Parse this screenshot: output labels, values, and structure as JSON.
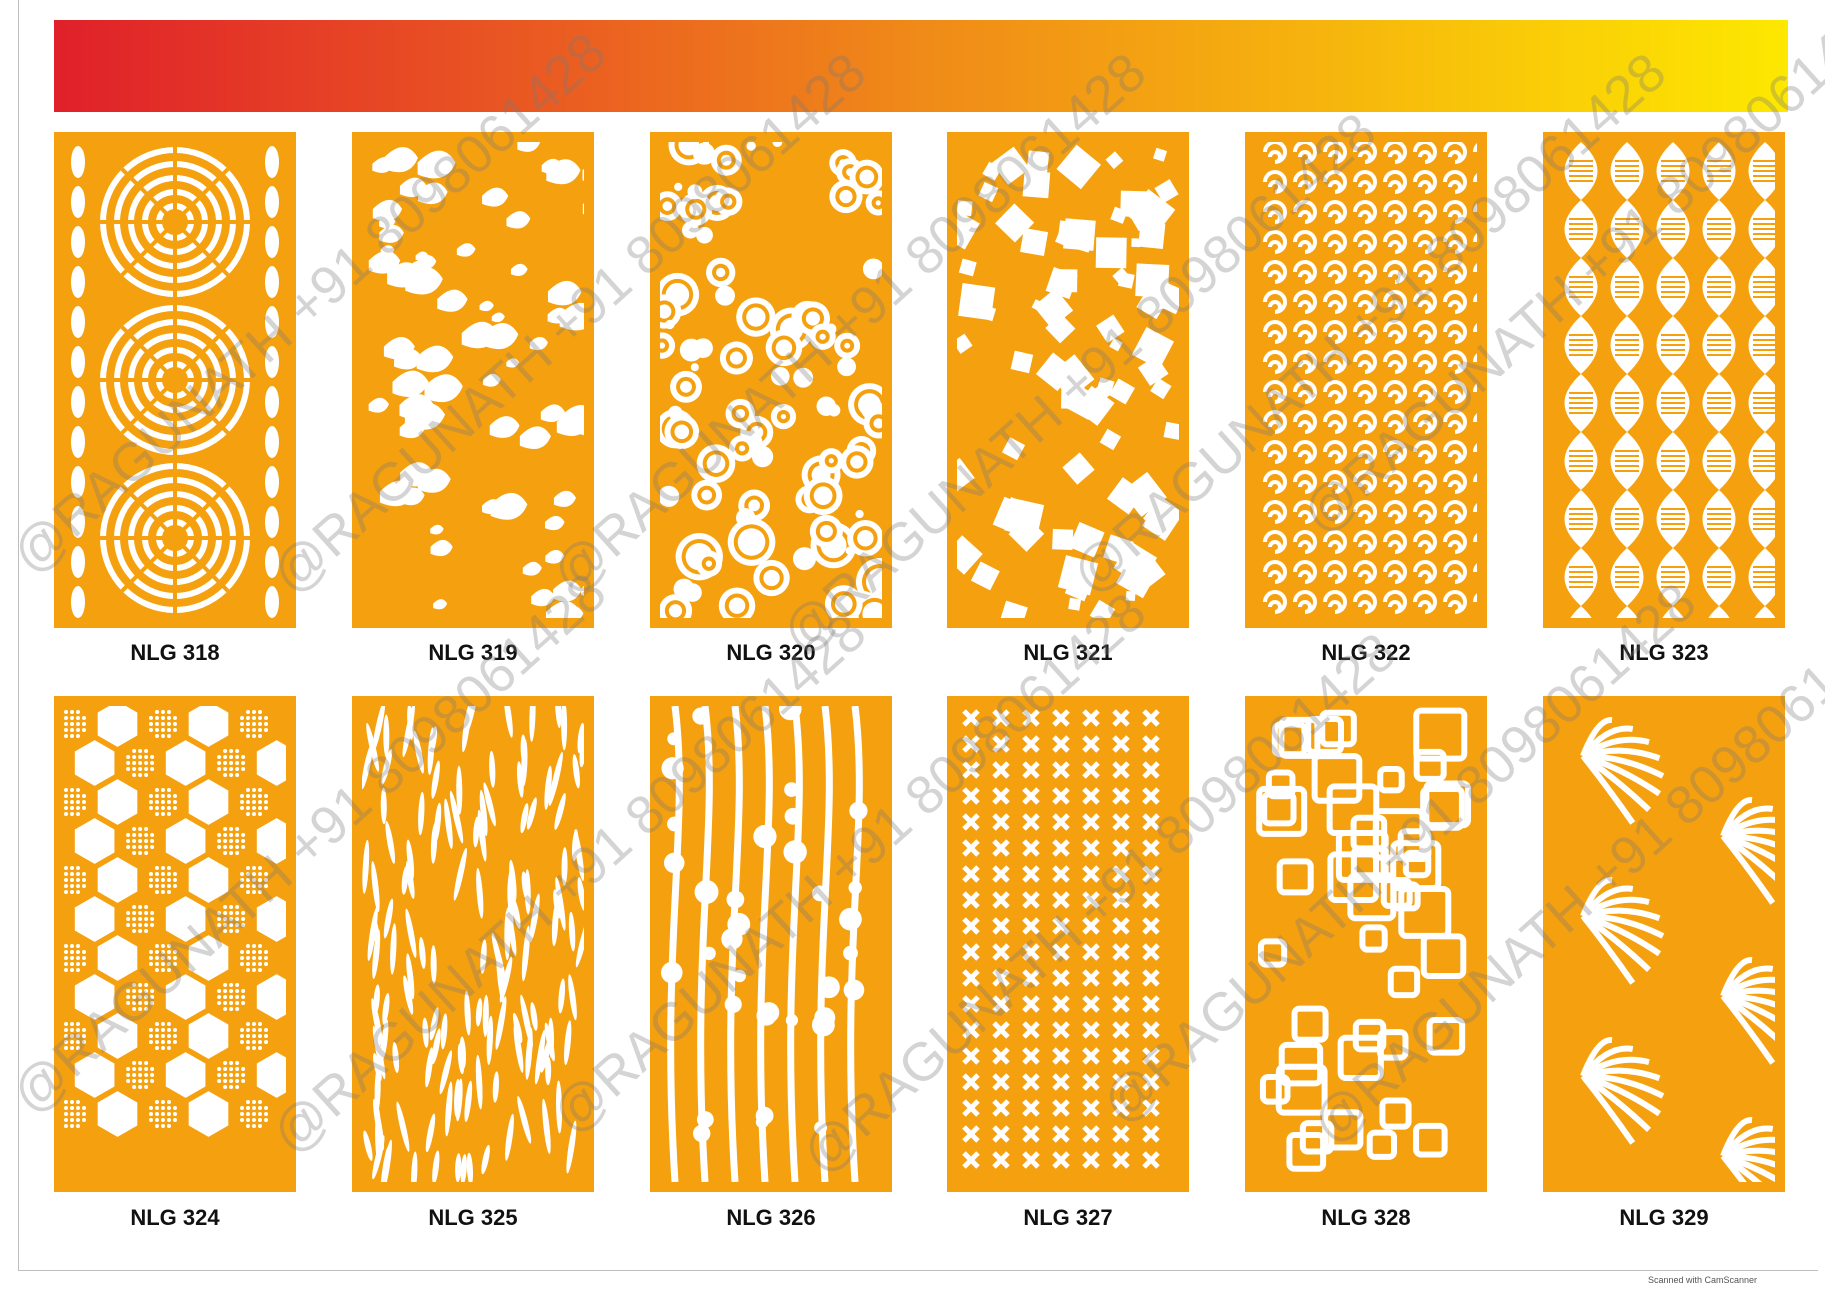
{
  "colors": {
    "panel": "#f5a00f",
    "cutout": "#ffffff",
    "label": "#111111"
  },
  "panels": [
    {
      "label": "NLG 318",
      "pattern": "concentric-circles"
    },
    {
      "label": "NLG 319",
      "pattern": "monstera-leaves"
    },
    {
      "label": "NLG 320",
      "pattern": "bubbles"
    },
    {
      "label": "NLG 321",
      "pattern": "scattered-squares"
    },
    {
      "label": "NLG 322",
      "pattern": "swirls"
    },
    {
      "label": "NLG 323",
      "pattern": "waves"
    },
    {
      "label": "NLG 324",
      "pattern": "hexagons"
    },
    {
      "label": "NLG 325",
      "pattern": "flowing-lines"
    },
    {
      "label": "NLG 326",
      "pattern": "circuit-dots"
    },
    {
      "label": "NLG 327",
      "pattern": "x-crosses"
    },
    {
      "label": "NLG 328",
      "pattern": "interlocking-squares"
    },
    {
      "label": "NLG 329",
      "pattern": "fern-leaves"
    }
  ],
  "watermarks": [
    "@RAGUNATH +91 8098061428"
  ],
  "scan_note": "Scanned with CamScanner"
}
